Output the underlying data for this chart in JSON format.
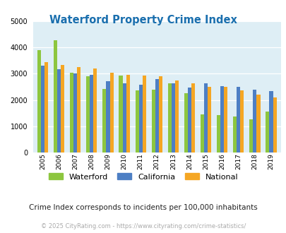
{
  "title": "Waterford Property Crime Index",
  "years": [
    2005,
    2006,
    2007,
    2008,
    2009,
    2010,
    2011,
    2012,
    2013,
    2014,
    2015,
    2016,
    2017,
    2018,
    2019
  ],
  "waterford": [
    3900,
    4270,
    3030,
    2900,
    2420,
    2920,
    2370,
    2380,
    2620,
    2270,
    1450,
    1430,
    1360,
    1270,
    1570
  ],
  "california": [
    3300,
    3160,
    3020,
    2960,
    2720,
    2640,
    2590,
    2800,
    2640,
    2470,
    2620,
    2530,
    2500,
    2390,
    2330
  ],
  "national": [
    3440,
    3330,
    3240,
    3200,
    3040,
    2960,
    2940,
    2900,
    2750,
    2630,
    2510,
    2500,
    2360,
    2200,
    2100
  ],
  "waterford_color": "#8dc63f",
  "california_color": "#4d7fc4",
  "national_color": "#f5a623",
  "background_color": "#deeef5",
  "ylim": [
    0,
    5000
  ],
  "yticks": [
    0,
    1000,
    2000,
    3000,
    4000,
    5000
  ],
  "subtitle": "Crime Index corresponds to incidents per 100,000 inhabitants",
  "footer": "© 2025 CityRating.com - https://www.cityrating.com/crime-statistics/",
  "legend_labels": [
    "Waterford",
    "California",
    "National"
  ]
}
